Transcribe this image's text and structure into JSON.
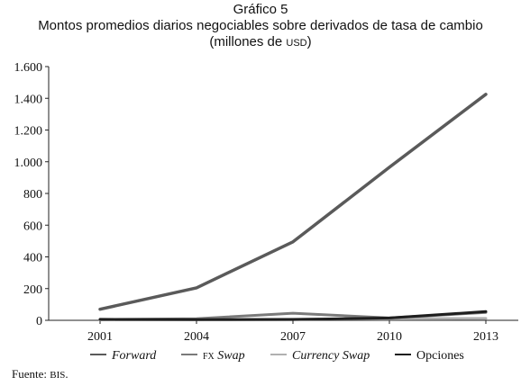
{
  "title": {
    "line1": "Gráfico 5",
    "line2": "Montos promedios diarios negociables sobre derivados de tasa de cambio",
    "line3_prefix": "(millones de ",
    "line3_unit": "USD",
    "line3_suffix": ")"
  },
  "source": {
    "label": "Fuente: ",
    "value": "BIS",
    "end": "."
  },
  "chart_data": {
    "type": "line",
    "title": "Montos promedios diarios negociables sobre derivados de tasa de cambio",
    "ylabel": "millones de USD",
    "xlabel": "",
    "x": [
      2001,
      2004,
      2007,
      2010,
      2013
    ],
    "x_tick_labels": [
      "2001",
      "2004",
      "2007",
      "2010",
      "2013"
    ],
    "ylim": [
      0,
      1600
    ],
    "y_ticks": [
      0,
      200,
      400,
      600,
      800,
      1000,
      1200,
      1400,
      1600
    ],
    "y_tick_labels": [
      "0",
      "200",
      "400",
      "600",
      "800",
      "1.000",
      "1.200",
      "1.400",
      "1.600"
    ],
    "grid": false,
    "legend_position": "bottom",
    "series": [
      {
        "name": "Forward",
        "legend_prefix": "",
        "legend_name": "Forward",
        "italic": true,
        "color": "#5a5a5a",
        "width": 3.5,
        "values": [
          70,
          205,
          495,
          965,
          1425
        ]
      },
      {
        "name": "FX Swap",
        "legend_prefix": "FX",
        "legend_name": " Swap",
        "italic": true,
        "color": "#7a7a7a",
        "width": 3,
        "values": [
          5,
          10,
          45,
          15,
          50
        ]
      },
      {
        "name": "Currency Swap",
        "legend_prefix": "",
        "legend_name": "Currency Swap",
        "italic": true,
        "color": "#b0b0b0",
        "width": 3,
        "values": [
          3,
          5,
          8,
          10,
          12
        ]
      },
      {
        "name": "Opciones",
        "legend_prefix": "",
        "legend_name": "Opciones",
        "italic": false,
        "color": "#1e1e1e",
        "width": 3,
        "values": [
          6,
          4,
          5,
          15,
          55
        ]
      }
    ]
  }
}
